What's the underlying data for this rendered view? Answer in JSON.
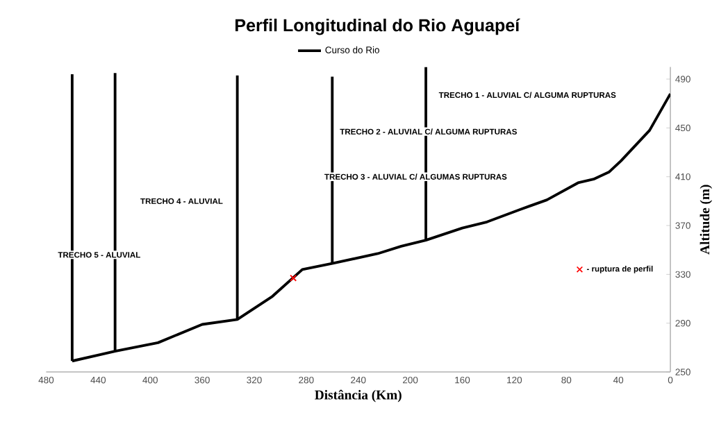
{
  "chart_data": {
    "type": "line",
    "title": "Perfil Longitudinal do Rio Aguapeí",
    "xlabel": "Distância (Km)",
    "ylabel": "Altitude (m)",
    "xlim": [
      480,
      0
    ],
    "xticks": [
      480,
      440,
      400,
      360,
      320,
      280,
      240,
      200,
      160,
      120,
      80,
      40,
      0
    ],
    "ylim": [
      250,
      500
    ],
    "yticks": [
      250,
      290,
      330,
      370,
      410,
      450,
      490
    ],
    "grid": false,
    "legend": "top",
    "marker": "none",
    "line_style": "solid",
    "series": [
      {
        "name": "Curso do Rio",
        "color": "#000000",
        "x": [
          460,
          427,
          394,
          360,
          333,
          306,
          283,
          260,
          225,
          207,
          188,
          160,
          141,
          116,
          95,
          71,
          59,
          47,
          38,
          16,
          0
        ],
        "values": [
          259,
          267,
          274,
          289,
          293,
          312,
          334,
          339,
          347,
          353,
          358,
          368,
          373,
          383,
          391,
          405,
          408,
          414,
          423,
          448,
          478
        ]
      },
      {
        "color": "#000000",
        "x": [
          460,
          460
        ],
        "values": [
          259,
          494
        ]
      },
      {
        "color": "#000000",
        "x": [
          427,
          427
        ],
        "values": [
          267,
          495
        ]
      },
      {
        "color": "#000000",
        "x": [
          333,
          333
        ],
        "values": [
          293,
          493
        ]
      },
      {
        "color": "#000000",
        "x": [
          260,
          260
        ],
        "values": [
          339,
          492
        ]
      },
      {
        "color": "#000000",
        "x": [
          188,
          188
        ],
        "values": [
          358,
          500
        ]
      },
      {
        "type": "scatter",
        "marker": "cross",
        "color": "#ff0000",
        "x": [
          290
        ],
        "values": [
          327
        ]
      }
    ],
    "annotations": [
      "TRECHO 1 - ALUVIAL C/ ALGUMA RUPTURAS",
      "TRECHO 2 - ALUVIAL C/ ALGUMA RUPTURAS",
      "TRECHO 3 - ALUVIAL C/ ALGUMAS RUPTURAS",
      "TRECHO 4 - ALUVIAL",
      "TRECHO 5 - ALUVIAL",
      "- ruptura de perfil"
    ]
  }
}
